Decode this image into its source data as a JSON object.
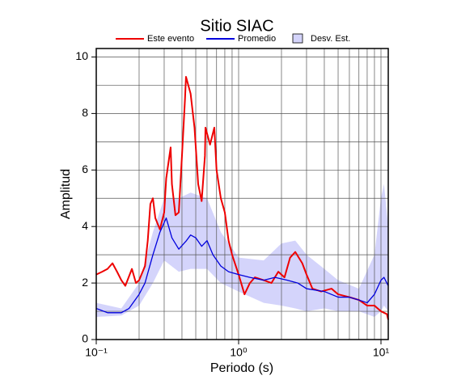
{
  "chart_data": {
    "type": "line",
    "title": "Sitio SIAC",
    "x_label": "Periodo (s)",
    "y_label": "Amplitud",
    "log_x": true,
    "grid": true,
    "xlim": [
      0.1,
      11.25
    ],
    "ylim": [
      0,
      10.3
    ],
    "xticks": [
      {
        "value": 0.1,
        "label": "10⁻¹"
      },
      {
        "value": 1,
        "label": "10⁰"
      },
      {
        "value": 10,
        "label": "10¹"
      }
    ],
    "yticks": [
      0,
      2,
      4,
      6,
      8,
      10
    ],
    "xgrid": [
      0.2,
      0.3,
      0.4,
      0.5,
      0.6,
      0.7,
      0.8,
      0.9,
      1,
      2,
      3,
      4,
      5,
      6,
      7,
      8,
      9,
      10
    ],
    "ygrid": [
      1,
      2,
      3,
      4,
      5,
      6,
      7,
      8,
      9,
      10
    ],
    "series": [
      {
        "name": "Este evento",
        "color": "#ee0000",
        "x": [
          0.1,
          0.11,
          0.12,
          0.13,
          0.14,
          0.15,
          0.16,
          0.178,
          0.19,
          0.2,
          0.22,
          0.23,
          0.24,
          0.25,
          0.26,
          0.28,
          0.3,
          0.31,
          0.333,
          0.34,
          0.36,
          0.38,
          0.4,
          0.42,
          0.427,
          0.46,
          0.49,
          0.52,
          0.55,
          0.58,
          0.585,
          0.63,
          0.675,
          0.7,
          0.75,
          0.8,
          0.85,
          0.9,
          1.0,
          1.1,
          1.2,
          1.3,
          1.5,
          1.7,
          1.9,
          2.1,
          2.3,
          2.5,
          2.8,
          3.0,
          3.3,
          3.8,
          4.5,
          5.0,
          6.0,
          7.0,
          8.0,
          9.0,
          10,
          11,
          11.25
        ],
        "values": [
          2.3,
          2.4,
          2.5,
          2.7,
          2.4,
          2.1,
          1.9,
          2.5,
          2.0,
          2.1,
          2.6,
          3.5,
          4.8,
          5.0,
          4.3,
          3.9,
          4.5,
          5.7,
          6.8,
          5.5,
          4.4,
          4.5,
          6.5,
          8.5,
          9.3,
          8.7,
          7.5,
          5.5,
          4.9,
          6.5,
          7.5,
          6.9,
          7.5,
          6.0,
          5.0,
          4.5,
          3.5,
          3.0,
          2.3,
          1.6,
          2.0,
          2.2,
          2.1,
          2.0,
          2.4,
          2.2,
          2.9,
          3.1,
          2.7,
          2.3,
          1.8,
          1.7,
          1.8,
          1.6,
          1.5,
          1.4,
          1.2,
          1.2,
          1.0,
          0.9,
          0.7
        ]
      },
      {
        "name": "Promedio",
        "color": "#0000dd",
        "x": [
          0.1,
          0.12,
          0.15,
          0.17,
          0.2,
          0.22,
          0.25,
          0.28,
          0.31,
          0.34,
          0.38,
          0.43,
          0.46,
          0.5,
          0.55,
          0.6,
          0.66,
          0.75,
          0.85,
          1.0,
          1.2,
          1.5,
          1.8,
          2.2,
          2.6,
          3.0,
          4.0,
          5.0,
          6.0,
          7.0,
          8.0,
          9.0,
          10,
          10.5,
          11.25
        ],
        "values": [
          1.1,
          0.95,
          0.95,
          1.1,
          1.6,
          2.0,
          3.0,
          3.8,
          4.3,
          3.6,
          3.2,
          3.5,
          3.7,
          3.6,
          3.3,
          3.5,
          3.0,
          2.6,
          2.4,
          2.3,
          2.2,
          2.1,
          2.2,
          2.1,
          2.0,
          1.8,
          1.7,
          1.5,
          1.5,
          1.4,
          1.3,
          1.6,
          2.1,
          2.2,
          1.9
        ]
      },
      {
        "name": "Desv. Est.",
        "color": "#d4d4fb",
        "type": "band",
        "x": [
          0.1,
          0.15,
          0.2,
          0.25,
          0.3,
          0.38,
          0.46,
          0.6,
          0.75,
          1.0,
          1.5,
          2.0,
          2.5,
          3.0,
          4.0,
          5.0,
          7.0,
          9.0,
          10,
          10.5,
          11.25
        ],
        "lower": [
          0.8,
          0.85,
          1.2,
          2.0,
          2.8,
          2.4,
          2.5,
          2.5,
          2.0,
          1.7,
          1.3,
          1.2,
          1.1,
          1.0,
          1.1,
          1.0,
          1.0,
          0.8,
          1.0,
          1.2,
          1.0
        ],
        "upper": [
          1.3,
          1.1,
          2.0,
          3.8,
          5.0,
          5.0,
          5.2,
          5.0,
          3.8,
          2.9,
          2.8,
          3.4,
          3.5,
          3.0,
          2.5,
          2.1,
          1.8,
          3.0,
          5.0,
          5.5,
          4.0
        ]
      }
    ]
  }
}
